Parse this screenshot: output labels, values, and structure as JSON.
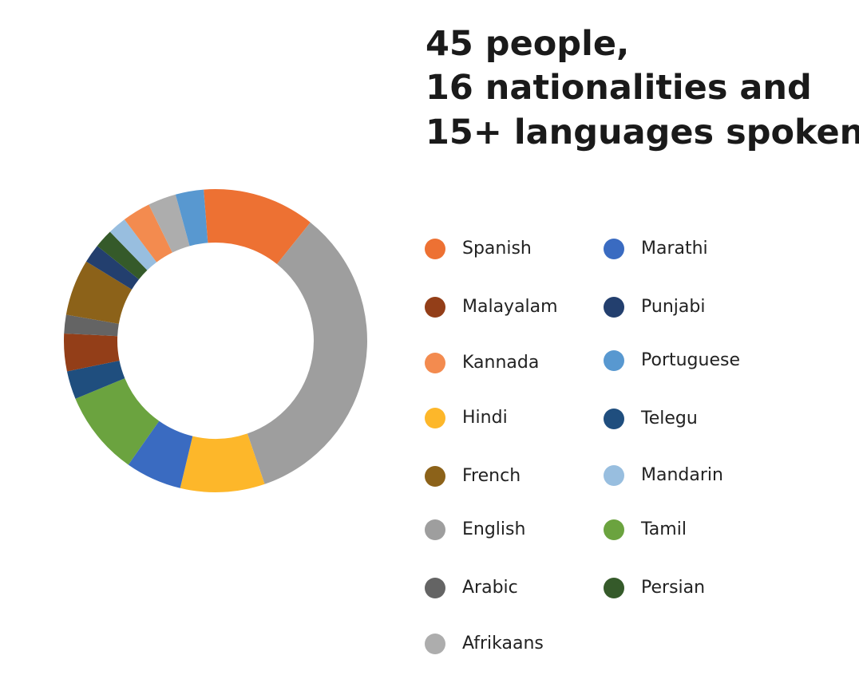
{
  "chart_data": {
    "type": "donut",
    "title": [
      "45 people,",
      "16 nationalities and",
      "15+ languages spoken"
    ],
    "categories": [
      "Spanish",
      "English",
      "Hindi",
      "Marathi",
      "Tamil",
      "Telegu",
      "Malayalam",
      "Arabic",
      "French",
      "Punjabi",
      "Persian",
      "Mandarin",
      "Kannada",
      "Afrikaans",
      "Portuguese"
    ],
    "values": [
      12,
      34,
      9,
      6,
      9,
      3,
      4,
      2,
      6,
      2,
      2,
      2,
      3,
      3,
      3
    ],
    "colors": [
      "#ED7133",
      "#9E9E9E",
      "#FDB72A",
      "#3A6BC1",
      "#6BA33F",
      "#1F4E7E",
      "#933E18",
      "#646464",
      "#8C6219",
      "#233F6E",
      "#355A2A",
      "#98BEDF",
      "#F38B4F",
      "#ADADAD",
      "#5898D0"
    ],
    "legend": "right"
  }
}
